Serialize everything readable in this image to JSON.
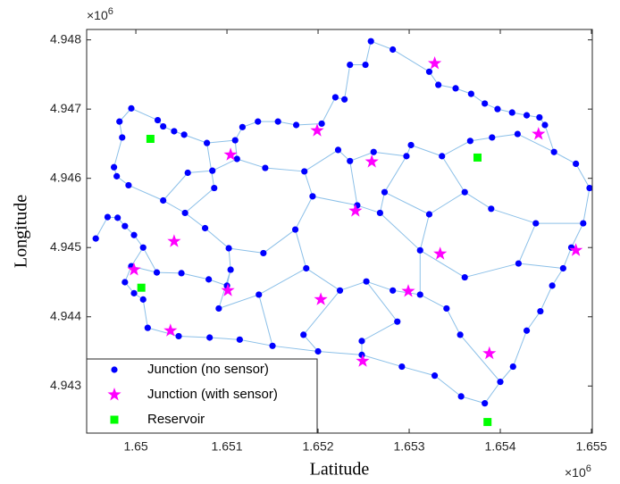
{
  "chart_data": {
    "type": "scatter",
    "xlabel": "Latitude",
    "ylabel": "Longitude",
    "x_offset": [
      "×10",
      "6"
    ],
    "y_offset": [
      "×10",
      "6"
    ],
    "xlim": [
      1649460,
      1655010
    ],
    "ylim": [
      4942320,
      4948150
    ],
    "xticks": [
      {
        "value": 1650000,
        "label": "1.65"
      },
      {
        "value": 1651000,
        "label": "1.651"
      },
      {
        "value": 1652000,
        "label": "1.652"
      },
      {
        "value": 1653000,
        "label": "1.653"
      },
      {
        "value": 1654000,
        "label": "1.654"
      },
      {
        "value": 1655000,
        "label": "1.655"
      }
    ],
    "yticks": [
      {
        "value": 4943000,
        "label": "4.943"
      },
      {
        "value": 4944000,
        "label": "4.944"
      },
      {
        "value": 4945000,
        "label": "4.945"
      },
      {
        "value": 4946000,
        "label": "4.946"
      },
      {
        "value": 4947000,
        "label": "4.947"
      },
      {
        "value": 4948000,
        "label": "4.948"
      }
    ],
    "grid": false,
    "legend": "lower left",
    "pipe_color": "#8cc0e8",
    "links": [
      [
        0,
        1
      ],
      [
        1,
        2
      ],
      [
        2,
        3
      ],
      [
        3,
        4
      ],
      [
        4,
        5
      ],
      [
        5,
        62
      ],
      [
        62,
        63
      ],
      [
        63,
        64
      ],
      [
        64,
        65
      ],
      [
        65,
        66
      ],
      [
        66,
        67
      ],
      [
        67,
        68
      ],
      [
        68,
        69
      ],
      [
        69,
        70
      ],
      [
        70,
        71
      ],
      [
        71,
        72
      ],
      [
        72,
        73
      ],
      [
        73,
        74
      ],
      [
        74,
        75
      ],
      [
        75,
        76
      ],
      [
        76,
        77
      ],
      [
        77,
        78
      ],
      [
        78,
        79
      ],
      [
        79,
        80
      ],
      [
        80,
        81
      ],
      [
        81,
        82
      ],
      [
        82,
        83
      ],
      [
        83,
        84
      ],
      [
        84,
        85
      ],
      [
        85,
        86
      ],
      [
        86,
        87
      ],
      [
        87,
        38
      ],
      [
        38,
        37
      ],
      [
        37,
        36
      ],
      [
        36,
        35
      ],
      [
        35,
        34
      ],
      [
        34,
        33
      ],
      [
        33,
        32
      ],
      [
        32,
        31
      ],
      [
        31,
        30
      ],
      [
        30,
        29
      ],
      [
        29,
        28
      ],
      [
        28,
        27
      ],
      [
        27,
        26
      ],
      [
        26,
        25
      ],
      [
        25,
        24
      ],
      [
        24,
        23
      ],
      [
        23,
        22
      ],
      [
        22,
        21
      ],
      [
        21,
        20
      ],
      [
        20,
        19
      ],
      [
        19,
        18
      ],
      [
        18,
        17
      ],
      [
        17,
        16
      ],
      [
        16,
        15
      ],
      [
        15,
        14
      ],
      [
        14,
        13
      ],
      [
        13,
        12
      ],
      [
        12,
        6
      ],
      [
        6,
        8
      ],
      [
        8,
        7
      ],
      [
        7,
        9
      ],
      [
        9,
        10
      ],
      [
        10,
        11
      ],
      [
        11,
        53
      ],
      [
        53,
        54
      ],
      [
        54,
        55
      ],
      [
        55,
        56
      ],
      [
        56,
        57
      ],
      [
        57,
        58
      ],
      [
        58,
        59
      ],
      [
        59,
        60
      ],
      [
        60,
        61
      ],
      [
        61,
        62
      ],
      [
        17,
        50
      ],
      [
        50,
        51
      ],
      [
        51,
        52
      ],
      [
        52,
        53
      ],
      [
        50,
        49
      ],
      [
        49,
        48
      ],
      [
        48,
        47
      ],
      [
        47,
        46
      ],
      [
        46,
        45
      ],
      [
        45,
        44
      ],
      [
        44,
        43
      ],
      [
        43,
        42
      ],
      [
        42,
        41
      ],
      [
        41,
        40
      ],
      [
        40,
        39
      ],
      [
        39,
        87
      ],
      [
        16,
        112
      ],
      [
        112,
        54
      ],
      [
        48,
        94
      ],
      [
        94,
        93
      ],
      [
        93,
        113
      ],
      [
        113,
        92
      ],
      [
        92,
        91
      ],
      [
        91,
        90
      ],
      [
        90,
        89
      ],
      [
        89,
        88
      ],
      [
        88,
        84
      ],
      [
        94,
        95
      ],
      [
        95,
        96
      ],
      [
        96,
        56
      ],
      [
        95,
        97
      ],
      [
        97,
        98
      ],
      [
        98,
        99
      ],
      [
        99,
        100
      ],
      [
        100,
        101
      ],
      [
        101,
        102
      ],
      [
        102,
        103
      ],
      [
        103,
        77
      ],
      [
        99,
        104
      ],
      [
        104,
        105
      ],
      [
        105,
        72
      ],
      [
        98,
        106
      ],
      [
        106,
        71
      ],
      [
        97,
        107
      ],
      [
        107,
        108
      ],
      [
        108,
        57
      ],
      [
        109,
        91
      ],
      [
        109,
        110
      ],
      [
        110,
        111
      ],
      [
        111,
        82
      ],
      [
        109,
        101
      ],
      [
        44,
        92
      ],
      [
        46,
        93
      ],
      [
        113,
        109
      ],
      [
        42,
        90
      ],
      [
        88,
        111
      ],
      [
        70,
        107
      ],
      [
        5,
        61
      ]
    ],
    "series": [
      {
        "name": "Junction (no sensor)",
        "marker": "circle",
        "color": "#0000ff",
        "x": [
          1649560,
          1649690,
          1649800,
          1649880,
          1649980,
          1650080,
          1649950,
          1649850,
          1649820,
          1649760,
          1649790,
          1649920,
          1650240,
          1650300,
          1650420,
          1650530,
          1650780,
          1651090,
          1651170,
          1651340,
          1651560,
          1651760,
          1652040,
          1652190,
          1652290,
          1652350,
          1652520,
          1652580,
          1652820,
          1653220,
          1653320,
          1653510,
          1653680,
          1653830,
          1653970,
          1654130,
          1654290,
          1654430,
          1654490,
          1654190,
          1653910,
          1653670,
          1653360,
          1653020,
          1652970,
          1652610,
          1652350,
          1652220,
          1651850,
          1651420,
          1651110,
          1650840,
          1650570,
          1650300,
          1650540,
          1650760,
          1651020,
          1651040,
          1651000,
          1650800,
          1650500,
          1650230,
          1649950,
          1649880,
          1649980,
          1650080,
          1650130,
          1650470,
          1650810,
          1651140,
          1651500,
          1652000,
          1652480,
          1652920,
          1653280,
          1653570,
          1653830,
          1654000,
          1654140,
          1654290,
          1654440,
          1654570,
          1654690,
          1654780,
          1654910,
          1654980,
          1654830,
          1654590,
          1654390,
          1653900,
          1653610,
          1653220,
          1652730,
          1652430,
          1651940,
          1651750,
          1651400,
          1651870,
          1652240,
          1652530,
          1652820,
          1653120,
          1653410,
          1653560,
          1652870,
          1652480,
          1651840,
          1651350,
          1650910,
          1653120,
          1653610,
          1654200,
          1650860,
          1652680
        ],
        "values": [
          4945130,
          4945440,
          4945430,
          4945310,
          4945180,
          4945000,
          4947010,
          4946590,
          4946820,
          4946160,
          4946030,
          4945900,
          4946840,
          4946750,
          4946680,
          4946630,
          4946510,
          4946550,
          4946740,
          4946820,
          4946820,
          4946770,
          4946790,
          4947170,
          4947140,
          4947640,
          4947640,
          4947980,
          4947860,
          4947540,
          4947350,
          4947300,
          4947220,
          4947080,
          4947000,
          4946950,
          4946910,
          4946880,
          4946770,
          4946640,
          4946590,
          4946540,
          4946320,
          4946480,
          4946320,
          4946380,
          4946250,
          4946410,
          4946100,
          4946150,
          4946280,
          4946110,
          4946080,
          4945680,
          4945500,
          4945280,
          4944990,
          4944680,
          4944450,
          4944540,
          4944630,
          4944640,
          4944730,
          4944500,
          4944340,
          4944250,
          4943840,
          4943720,
          4943700,
          4943670,
          4943580,
          4943500,
          4943450,
          4943280,
          4943150,
          4942850,
          4942750,
          4943060,
          4943280,
          4943800,
          4944080,
          4944450,
          4944700,
          4945000,
          4945350,
          4945860,
          4946210,
          4946380,
          4945350,
          4945560,
          4945800,
          4945480,
          4945800,
          4945610,
          4945740,
          4945260,
          4944920,
          4944700,
          4944380,
          4944510,
          4944380,
          4944320,
          4944120,
          4943740,
          4943930,
          4943650,
          4943740,
          4944320,
          4944120,
          4944960,
          4944570,
          4944770,
          4945860,
          4945500
        ]
      },
      {
        "name": "Junction (with sensor)",
        "marker": "star",
        "color": "#ff00ff",
        "x": [
          1653280,
          1651990,
          1651040,
          1652590,
          1652410,
          1650420,
          1649980,
          1651010,
          1652030,
          1652990,
          1653340,
          1650380,
          1652490,
          1653880,
          1654420,
          1654830
        ],
        "values": [
          4947660,
          4946690,
          4946340,
          4946240,
          4945530,
          4945090,
          4944680,
          4944380,
          4944250,
          4944370,
          4944910,
          4943800,
          4943360,
          4943470,
          4946640,
          4944960
        ]
      },
      {
        "name": "Reservoir",
        "marker": "square",
        "color": "#00ff00",
        "x": [
          1650160,
          1653750,
          1650060,
          1653860
        ],
        "values": [
          4946570,
          4946300,
          4944420,
          4942480
        ]
      }
    ]
  }
}
